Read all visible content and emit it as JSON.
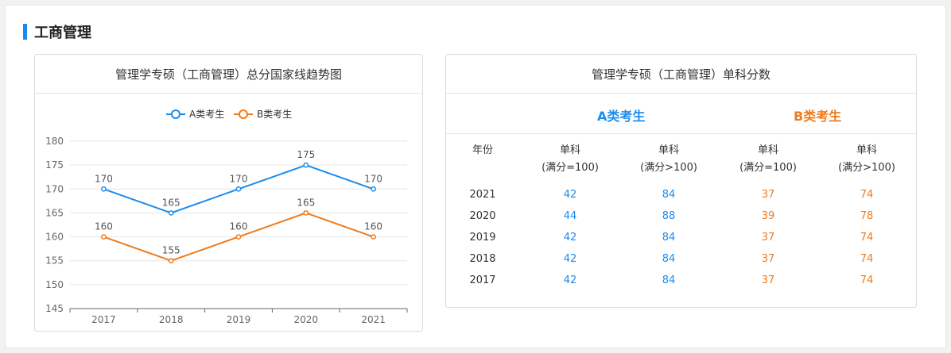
{
  "section": {
    "title": "工商管理"
  },
  "left_panel": {
    "title": "管理学专硕（工商管理）总分国家线趋势图"
  },
  "chart_data": {
    "type": "line",
    "title": "管理学专硕（工商管理）总分国家线趋势图",
    "categories": [
      "2017",
      "2018",
      "2019",
      "2020",
      "2021"
    ],
    "series": [
      {
        "name": "A类考生",
        "values": [
          170,
          165,
          170,
          175,
          170
        ],
        "color": "#1a8cf0"
      },
      {
        "name": "B类考生",
        "values": [
          160,
          155,
          160,
          165,
          160
        ],
        "color": "#f07a1a"
      }
    ],
    "ylim": [
      145,
      180
    ],
    "yticks": [
      145,
      150,
      155,
      160,
      165,
      170,
      175,
      180
    ],
    "xlabel": "",
    "ylabel": "",
    "legend_position": "top-center",
    "grid": true,
    "data_labels": true
  },
  "right_panel": {
    "title": "管理学专硕（工商管理）单科分数",
    "type_a_label": "A类考生",
    "type_b_label": "B类考生",
    "headers": [
      {
        "line1": "年份",
        "line2": ""
      },
      {
        "line1": "单科",
        "line2": "(满分=100)"
      },
      {
        "line1": "单科",
        "line2": "(满分>100)"
      },
      {
        "line1": "单科",
        "line2": "(满分=100)"
      },
      {
        "line1": "单科",
        "line2": "(满分>100)"
      }
    ],
    "rows": [
      {
        "year": "2021",
        "a100": "42",
        "a_over": "84",
        "b100": "37",
        "b_over": "74"
      },
      {
        "year": "2020",
        "a100": "44",
        "a_over": "88",
        "b100": "39",
        "b_over": "78"
      },
      {
        "year": "2019",
        "a100": "42",
        "a_over": "84",
        "b100": "37",
        "b_over": "74"
      },
      {
        "year": "2018",
        "a100": "42",
        "a_over": "84",
        "b100": "37",
        "b_over": "74"
      },
      {
        "year": "2017",
        "a100": "42",
        "a_over": "84",
        "b100": "37",
        "b_over": "74"
      }
    ]
  }
}
